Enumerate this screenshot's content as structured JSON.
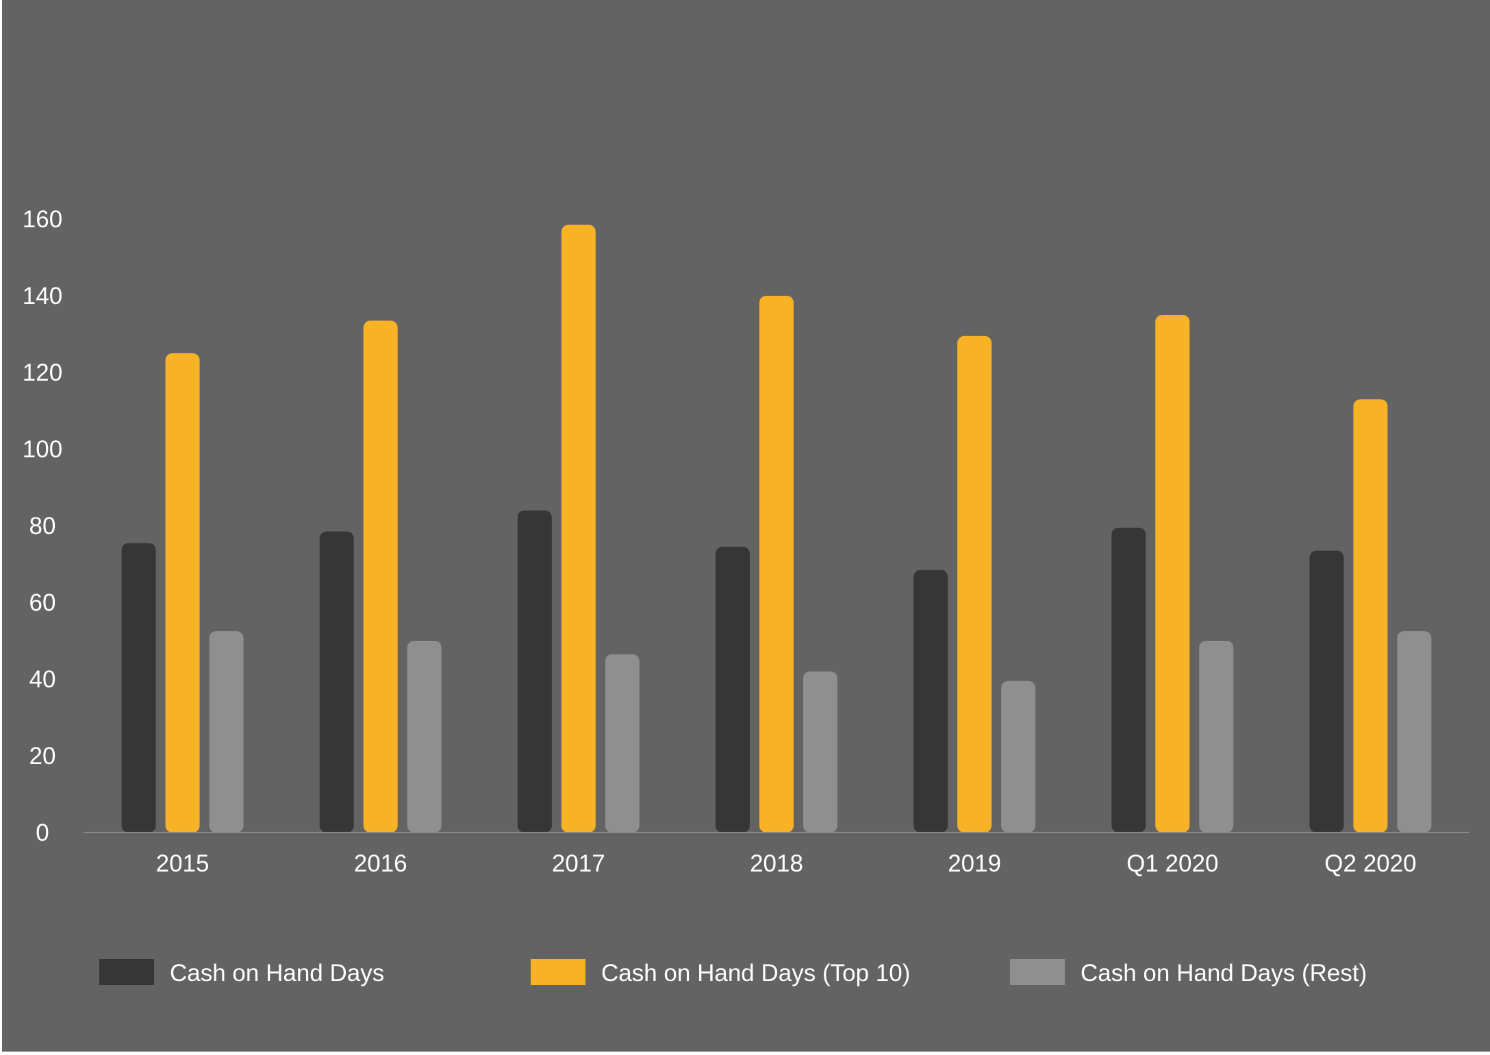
{
  "colors": {
    "background": "#636363",
    "frame": "#ffffff",
    "axis_line": "#8a8a8a",
    "text": "#ffffff"
  },
  "chart_data": {
    "type": "bar",
    "title": "",
    "xlabel": "",
    "ylabel": "",
    "categories": [
      "2015",
      "2016",
      "2017",
      "2018",
      "2019",
      "Q1 2020",
      "Q2 2020"
    ],
    "ylim": [
      0,
      160
    ],
    "yticks": [
      0,
      20,
      40,
      60,
      80,
      100,
      120,
      140,
      160
    ],
    "grid": false,
    "legend_position": "bottom",
    "series": [
      {
        "name": "Cash on Hand Days",
        "color": "#363636",
        "values": [
          75.5,
          78.5,
          84,
          74.5,
          68.5,
          79.5,
          73.5
        ]
      },
      {
        "name": "Cash on Hand Days (Top 10)",
        "color": "#F7B226",
        "values": [
          125,
          133.5,
          158.5,
          140,
          129.5,
          135,
          113
        ]
      },
      {
        "name": "Cash on Hand Days (Rest)",
        "color": "#8F8F8F",
        "values": [
          52.5,
          50,
          46.5,
          42,
          39.5,
          50,
          52.5
        ]
      }
    ]
  }
}
